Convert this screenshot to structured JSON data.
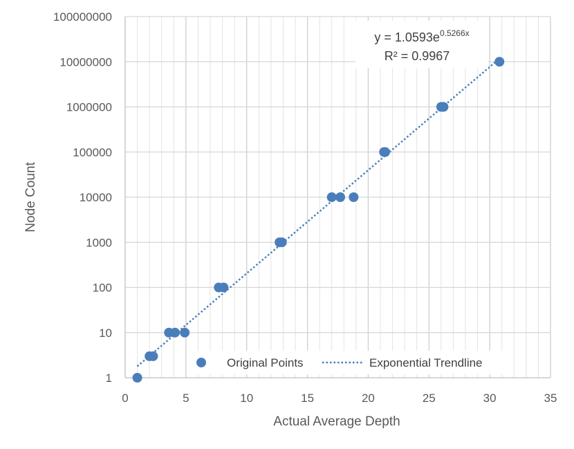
{
  "chart_data": {
    "type": "scatter",
    "xlabel": "Actual Average Depth",
    "ylabel": "Node Count",
    "xlim": [
      0,
      35
    ],
    "ylim": [
      1,
      100000000
    ],
    "y_scale": "log",
    "x_ticks": [
      0,
      5,
      10,
      15,
      20,
      25,
      30,
      35
    ],
    "x_tick_labels": [
      "0",
      "5",
      "10",
      "15",
      "20",
      "25",
      "30",
      "35"
    ],
    "y_ticks": [
      1,
      10,
      100,
      1000,
      10000,
      100000,
      1000000,
      10000000,
      100000000
    ],
    "y_tick_labels": [
      "1",
      "10",
      "100",
      "1000",
      "10000",
      "100000",
      "1000000",
      "10000000",
      "100000000"
    ],
    "grid": true,
    "series": [
      {
        "name": "Original Points",
        "color": "#4a7ebb",
        "x": [
          1.0,
          2.0,
          2.3,
          3.6,
          4.1,
          4.9,
          7.7,
          8.1,
          12.7,
          12.9,
          17.0,
          17.7,
          18.8,
          21.3,
          21.4,
          26.0,
          26.2,
          30.8
        ],
        "y": [
          1,
          3,
          3,
          10,
          10,
          10,
          100,
          100,
          1000,
          1000,
          10000,
          10000,
          10000,
          100000,
          100000,
          1000000,
          1000000,
          10000000
        ]
      }
    ],
    "trendline": {
      "name": "Exponential Trendline",
      "type": "exponential",
      "a": 1.0593,
      "b": 0.5266,
      "x_range": [
        1.0,
        30.8
      ],
      "color": "#4a7ebb",
      "equation_base": "y = 1.0593e",
      "equation_exp": "0.5266x",
      "r_squared_text": "R² = 0.9967"
    },
    "legend": {
      "placement": "bottom-inside",
      "items": [
        "Original Points",
        "Exponential Trendline"
      ]
    }
  }
}
